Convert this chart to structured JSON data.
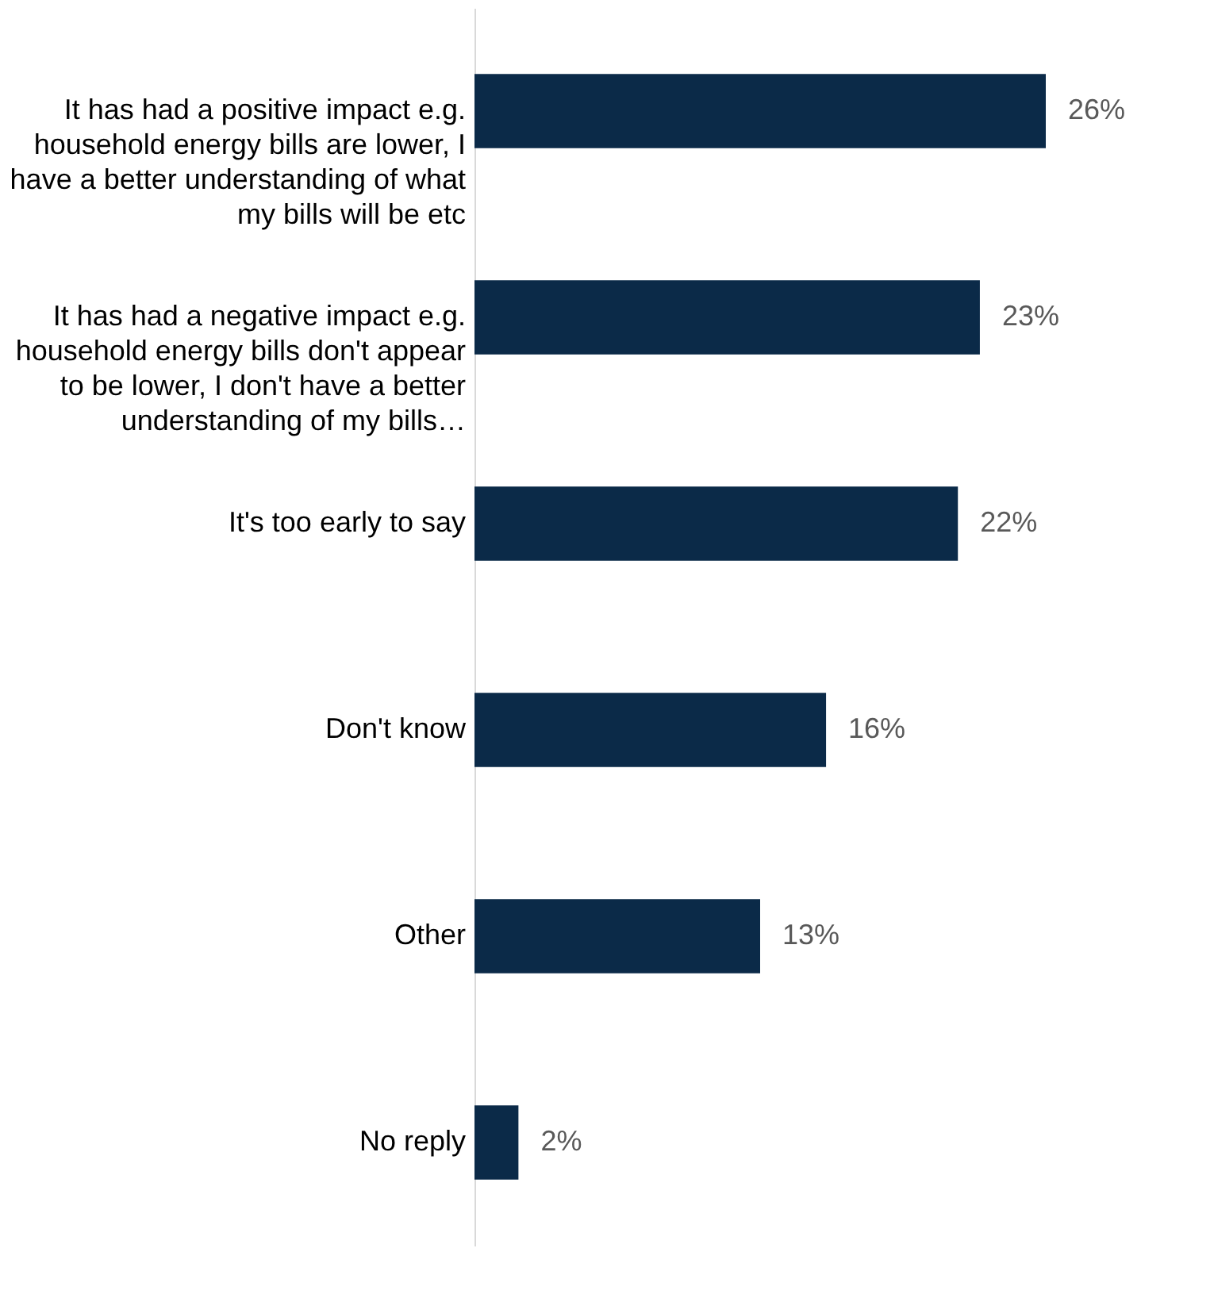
{
  "chart_data": {
    "type": "bar",
    "orientation": "horizontal",
    "categories": [
      "It has had a positive impact e.g. household energy bills are lower, I have a better understanding of what my bills will be etc",
      "It has had a negative impact e.g. household energy bills don't appear to be lower, I don't have a better understanding of my bills…",
      "It's too early to say",
      "Don't know",
      "Other",
      "No reply"
    ],
    "values": [
      26,
      23,
      22,
      16,
      13,
      2
    ],
    "value_labels": [
      "26%",
      "23%",
      "22%",
      "16%",
      "13%",
      "2%"
    ],
    "color": "#0b2a48",
    "grid": false
  }
}
